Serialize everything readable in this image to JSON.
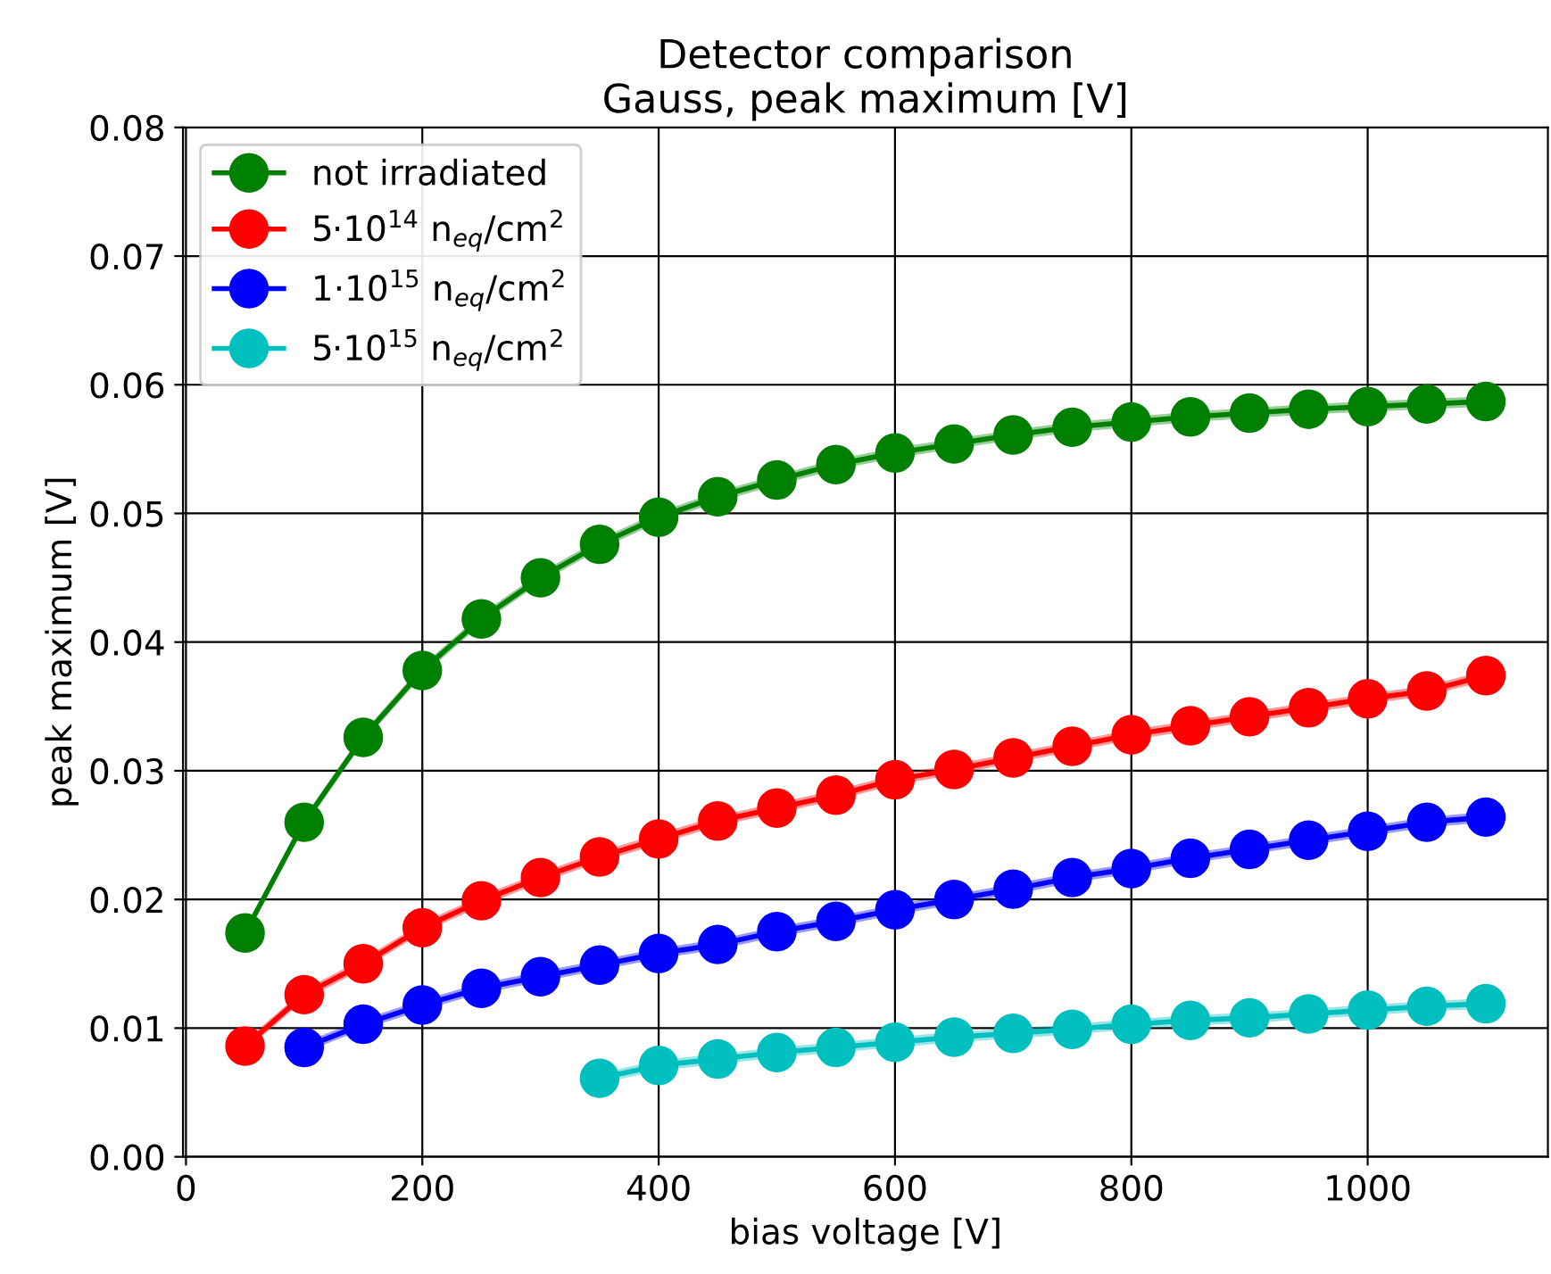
{
  "chart_data": {
    "type": "line",
    "title": "Detector comparison\nGauss, peak maximum [V]",
    "xlabel": "bias voltage [V]",
    "ylabel": "peak maximum [V]",
    "xlim": [
      -2.5,
      1152.5
    ],
    "xticks": [
      0,
      200,
      400,
      600,
      800,
      1000
    ],
    "ylim": [
      0,
      0.08
    ],
    "yticks": [
      {
        "value": 0,
        "label": "0.00"
      },
      {
        "value": 0.01,
        "label": "0.01"
      },
      {
        "value": 0.02,
        "label": "0.02"
      },
      {
        "value": 0.03,
        "label": "0.03"
      },
      {
        "value": 0.04,
        "label": "0.04"
      },
      {
        "value": 0.05,
        "label": "0.05"
      },
      {
        "value": 0.06,
        "label": "0.06"
      },
      {
        "value": 0.07,
        "label": "0.07"
      },
      {
        "value": 0.08,
        "label": "0.08"
      }
    ],
    "grid": true,
    "legend": "top left",
    "marker": "circle",
    "line_style": "solid",
    "series": [
      {
        "name": "not irradiated",
        "color": "#008000",
        "x": [
          50,
          100,
          150,
          200,
          250,
          300,
          350,
          400,
          450,
          500,
          550,
          600,
          650,
          700,
          750,
          800,
          850,
          900,
          950,
          1000,
          1050,
          1100
        ],
        "values": [
          0.0174,
          0.026,
          0.0326,
          0.0378,
          0.0418,
          0.045,
          0.0476,
          0.0497,
          0.0513,
          0.0526,
          0.0538,
          0.0547,
          0.0554,
          0.0561,
          0.0567,
          0.0571,
          0.0575,
          0.0578,
          0.0581,
          0.0583,
          0.0585,
          0.0587
        ],
        "lower": [
          0.017,
          0.0256,
          0.0322,
          0.0374,
          0.0414,
          0.0446,
          0.0472,
          0.0493,
          0.0509,
          0.0522,
          0.0534,
          0.0543,
          0.055,
          0.0557,
          0.0563,
          0.0567,
          0.0571,
          0.0574,
          0.0577,
          0.0579,
          0.0581,
          0.0583
        ],
        "upper": [
          0.0178,
          0.0264,
          0.033,
          0.0382,
          0.0422,
          0.0454,
          0.048,
          0.0501,
          0.0517,
          0.053,
          0.0542,
          0.0551,
          0.0558,
          0.0565,
          0.0571,
          0.0575,
          0.0579,
          0.0582,
          0.0585,
          0.0587,
          0.0589,
          0.0591
        ]
      },
      {
        "name": "5·10$^{14}$ n$_{eq}$/cm$^{2}$",
        "color": "#ff0000",
        "x": [
          50,
          100,
          150,
          200,
          250,
          300,
          350,
          400,
          450,
          500,
          550,
          600,
          650,
          700,
          750,
          800,
          850,
          900,
          950,
          1000,
          1050,
          1100
        ],
        "values": [
          0.0086,
          0.0126,
          0.015,
          0.0178,
          0.0199,
          0.0217,
          0.0233,
          0.0247,
          0.0261,
          0.0271,
          0.0281,
          0.0293,
          0.0301,
          0.031,
          0.0319,
          0.0328,
          0.0335,
          0.0342,
          0.0349,
          0.0356,
          0.0362,
          0.0374
        ],
        "lower": [
          0.0082,
          0.0122,
          0.0146,
          0.0174,
          0.0195,
          0.0213,
          0.0229,
          0.0243,
          0.0257,
          0.0267,
          0.0277,
          0.0289,
          0.0297,
          0.0306,
          0.0315,
          0.0324,
          0.0331,
          0.0338,
          0.0345,
          0.0352,
          0.0358,
          0.037
        ],
        "upper": [
          0.009,
          0.013,
          0.0154,
          0.0182,
          0.0203,
          0.0221,
          0.0237,
          0.0251,
          0.0265,
          0.0275,
          0.0285,
          0.0297,
          0.0305,
          0.0314,
          0.0323,
          0.0332,
          0.0339,
          0.0346,
          0.0353,
          0.036,
          0.0366,
          0.0378
        ]
      },
      {
        "name": "1·10$^{15}$ n$_{eq}$/cm$^{2}$",
        "color": "#0000ff",
        "x": [
          100,
          150,
          200,
          250,
          300,
          350,
          400,
          450,
          500,
          550,
          600,
          650,
          700,
          750,
          800,
          850,
          900,
          950,
          1000,
          1050,
          1100
        ],
        "values": [
          0.0085,
          0.0103,
          0.0118,
          0.0131,
          0.014,
          0.0149,
          0.0158,
          0.0165,
          0.0175,
          0.0183,
          0.0192,
          0.02,
          0.0208,
          0.0217,
          0.0224,
          0.0232,
          0.0239,
          0.0246,
          0.0253,
          0.026,
          0.0264
        ],
        "lower": [
          0.0081,
          0.0099,
          0.0114,
          0.0127,
          0.0136,
          0.0145,
          0.0154,
          0.0161,
          0.0171,
          0.0179,
          0.0188,
          0.0196,
          0.0204,
          0.0213,
          0.022,
          0.0228,
          0.0235,
          0.0242,
          0.0249,
          0.0256,
          0.026
        ],
        "upper": [
          0.0089,
          0.0107,
          0.0122,
          0.0135,
          0.0144,
          0.0153,
          0.0162,
          0.0169,
          0.0179,
          0.0187,
          0.0196,
          0.0204,
          0.0212,
          0.0221,
          0.0228,
          0.0236,
          0.0243,
          0.025,
          0.0257,
          0.0264,
          0.0268
        ]
      },
      {
        "name": "5·10$^{15}$ n$_{eq}$/cm$^{2}$",
        "color": "#00bfbf",
        "x": [
          350,
          400,
          450,
          500,
          550,
          600,
          650,
          700,
          750,
          800,
          850,
          900,
          950,
          1000,
          1050,
          1100
        ],
        "values": [
          0.0061,
          0.0071,
          0.0076,
          0.0081,
          0.0085,
          0.0089,
          0.0093,
          0.0096,
          0.0099,
          0.0103,
          0.0106,
          0.0108,
          0.0111,
          0.0114,
          0.0117,
          0.0119
        ],
        "lower": [
          0.0057,
          0.0067,
          0.0072,
          0.0077,
          0.0081,
          0.0085,
          0.0089,
          0.0092,
          0.0095,
          0.0099,
          0.0102,
          0.0104,
          0.0107,
          0.011,
          0.0113,
          0.0115
        ],
        "upper": [
          0.0065,
          0.0075,
          0.008,
          0.0085,
          0.0089,
          0.0093,
          0.0097,
          0.01,
          0.0103,
          0.0107,
          0.011,
          0.0112,
          0.0115,
          0.0118,
          0.0121,
          0.0123
        ]
      }
    ]
  }
}
